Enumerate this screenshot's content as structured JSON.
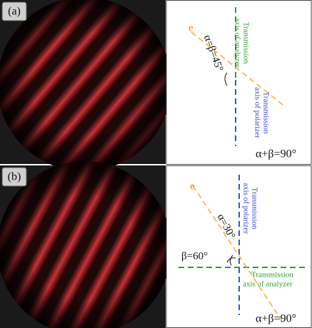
{
  "panels": [
    {
      "label": "(a)",
      "e_label": "e",
      "angle_label": "α=β=45°",
      "analyzer_label": [
        "Transmission",
        "axis of analyzer"
      ],
      "polarizer_label": [
        "Transmission",
        "axis of polarizer"
      ],
      "sum_label": "α+β=90°"
    },
    {
      "label": "(b)",
      "e_label": "e",
      "angle_label": "α=30°",
      "beta_label": "β=60°",
      "analyzer_label": [
        "Transmission",
        "axis of analyzer"
      ],
      "polarizer_label": [
        "Transmission",
        "axis of polarizer"
      ],
      "sum_label": "α+β=90°"
    }
  ]
}
